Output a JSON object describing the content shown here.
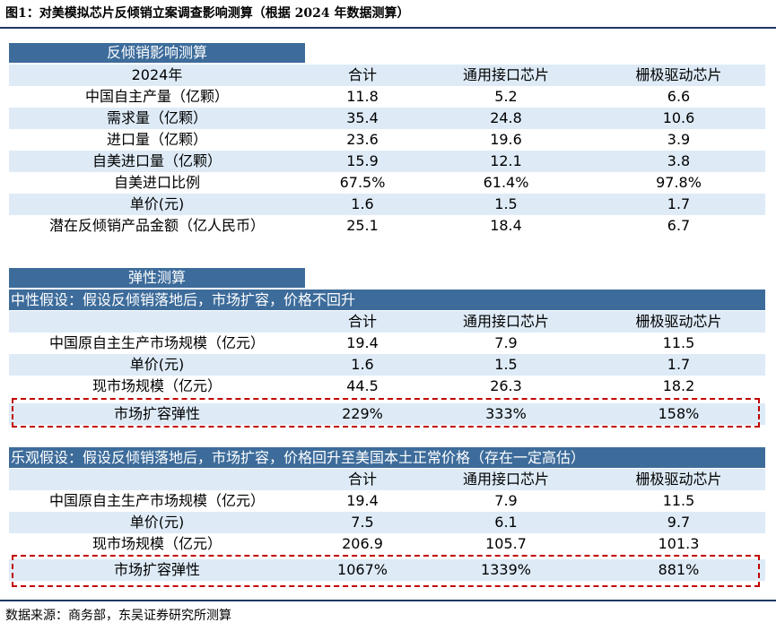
{
  "figure_title": "图1：对美模拟芯片反倾销立案调查影响测算（根据 2024 年数据测算）",
  "source": "数据来源：商务部，东吴证券研究所测算",
  "columns": [
    "合计",
    "通用接口芯片",
    "栅极驱动芯片"
  ],
  "section1": {
    "title": "反倾销影响测算",
    "year_label": "2024年",
    "rows": [
      {
        "label": "中国自主产量（亿颗）",
        "values": [
          "11.8",
          "5.2",
          "6.6"
        ]
      },
      {
        "label": "需求量（亿颗）",
        "values": [
          "35.4",
          "24.8",
          "10.6"
        ]
      },
      {
        "label": "进口量（亿颗）",
        "values": [
          "23.6",
          "19.6",
          "3.9"
        ]
      },
      {
        "label": "自美进口量（亿颗）",
        "values": [
          "15.9",
          "12.1",
          "3.8"
        ]
      },
      {
        "label": "自美进口比例",
        "values": [
          "67.5%",
          "61.4%",
          "97.8%"
        ]
      },
      {
        "label": "单价(元)",
        "values": [
          "1.6",
          "1.5",
          "1.7"
        ]
      },
      {
        "label": "潜在反倾销产品金额（亿人民币）",
        "values": [
          "25.1",
          "18.4",
          "6.7"
        ]
      }
    ]
  },
  "section2": {
    "title": "弹性测算",
    "scenario": "中性假设：假设反倾销落地后，市场扩容，价格不回升",
    "rows": [
      {
        "label": "中国原自主生产市场规模（亿元）",
        "values": [
          "19.4",
          "7.9",
          "11.5"
        ]
      },
      {
        "label": "单价(元)",
        "values": [
          "1.6",
          "1.5",
          "1.7"
        ]
      },
      {
        "label": "现市场规模（亿元）",
        "values": [
          "44.5",
          "26.3",
          "18.2"
        ]
      },
      {
        "label": "市场扩容弹性",
        "values": [
          "229%",
          "333%",
          "158%"
        ]
      }
    ]
  },
  "section3": {
    "scenario": "乐观假设：假设反倾销落地后，市场扩容，价格回升至美国本土正常价格（存在一定高估）",
    "rows": [
      {
        "label": "中国原自主生产市场规模（亿元）",
        "values": [
          "19.4",
          "7.9",
          "11.5"
        ]
      },
      {
        "label": "单价(元)",
        "values": [
          "7.5",
          "6.1",
          "9.7"
        ]
      },
      {
        "label": "现市场规模（亿元）",
        "values": [
          "206.9",
          "105.7",
          "101.3"
        ]
      },
      {
        "label": "市场扩容弹性",
        "values": [
          "1067%",
          "1339%",
          "881%"
        ]
      }
    ]
  }
}
